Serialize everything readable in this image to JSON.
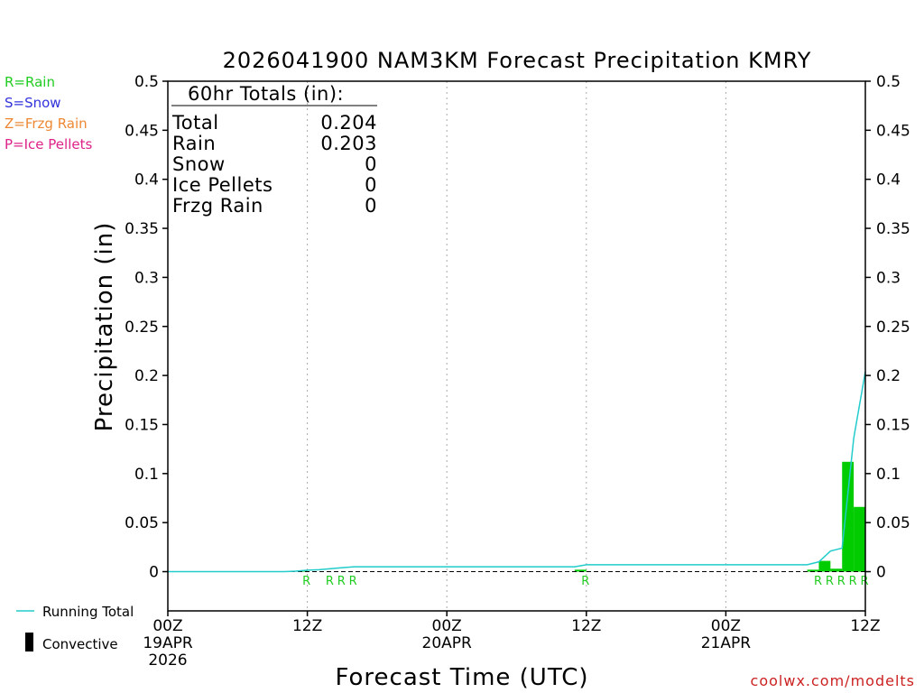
{
  "chart_data": {
    "type": "bar",
    "title": "2026041900 NAM3KM Forecast Precipitation KMRY",
    "ylabel": "Precipitation (in)",
    "xlabel": "Forecast Time (UTC)",
    "x_range_hours": [
      0,
      60
    ],
    "ylim": [
      -0.04,
      0.5
    ],
    "y_ticks": [
      "0",
      "0.05",
      "0.1",
      "0.15",
      "0.2",
      "0.25",
      "0.3",
      "0.35",
      "0.4",
      "0.45",
      "0.5"
    ],
    "y_tick_values": [
      0,
      0.05,
      0.1,
      0.15,
      0.2,
      0.25,
      0.3,
      0.35,
      0.4,
      0.45,
      0.5
    ],
    "x_ticks": [
      {
        "hour": 0,
        "line1": "00Z",
        "line2": "19APR",
        "line3": "2026"
      },
      {
        "hour": 12,
        "line1": "12Z",
        "line2": "",
        "line3": ""
      },
      {
        "hour": 24,
        "line1": "00Z",
        "line2": "20APR",
        "line3": ""
      },
      {
        "hour": 36,
        "line1": "12Z",
        "line2": "",
        "line3": ""
      },
      {
        "hour": 48,
        "line1": "00Z",
        "line2": "21APR",
        "line3": ""
      },
      {
        "hour": 60,
        "line1": "12Z",
        "line2": "",
        "line3": ""
      }
    ],
    "grid_vertical": true,
    "bars": [
      {
        "hour": 12,
        "value": 0.001
      },
      {
        "hour": 36,
        "value": 0.002
      },
      {
        "hour": 56,
        "value": 0.002
      },
      {
        "hour": 57,
        "value": 0.011
      },
      {
        "hour": 58,
        "value": 0.003
      },
      {
        "hour": 59,
        "value": 0.112
      },
      {
        "hour": 60,
        "value": 0.066
      }
    ],
    "running_total": {
      "name": "Running Total",
      "x": [
        0,
        10,
        11,
        12,
        13,
        14,
        15,
        16,
        24,
        35,
        36,
        37,
        48,
        55,
        56,
        57,
        58,
        59,
        60
      ],
      "y": [
        0,
        0,
        0.0005,
        0.0015,
        0.002,
        0.003,
        0.004,
        0.005,
        0.005,
        0.005,
        0.007,
        0.007,
        0.007,
        0.007,
        0.01,
        0.021,
        0.024,
        0.136,
        0.204
      ]
    },
    "precip_type_markers": [
      {
        "hour": 12,
        "label": "R"
      },
      {
        "hour": 14,
        "label": "R"
      },
      {
        "hour": 15,
        "label": "R"
      },
      {
        "hour": 16,
        "label": "R"
      },
      {
        "hour": 36,
        "label": "R"
      },
      {
        "hour": 56,
        "label": "R"
      },
      {
        "hour": 57,
        "label": "R"
      },
      {
        "hour": 58,
        "label": "R"
      },
      {
        "hour": 59,
        "label": "R"
      },
      {
        "hour": 60,
        "label": "R"
      }
    ],
    "totals_box": {
      "heading": "60hr Totals (in):",
      "rows": [
        {
          "label": "Total",
          "value": "0.204"
        },
        {
          "label": "Rain",
          "value": "0.203"
        },
        {
          "label": "Snow",
          "value": "0"
        },
        {
          "label": "Ice Pellets",
          "value": "0"
        },
        {
          "label": "Frzg Rain",
          "value": "0"
        }
      ]
    },
    "type_legend": [
      {
        "text": "R=Rain",
        "color": "#22cc22"
      },
      {
        "text": "S=Snow",
        "color": "#3333dd"
      },
      {
        "text": "Z=Frzg Rain",
        "color": "#ee8833"
      },
      {
        "text": "P=Ice Pellets",
        "color": "#dd2288"
      }
    ],
    "series_legend": [
      {
        "text": "Running Total",
        "color": "#22cccc"
      },
      {
        "text": "Convective",
        "color": "#000000"
      }
    ],
    "colors": {
      "bar": "#00cc00",
      "running_total": "#22cccc",
      "rain_marker": "#22cc22"
    },
    "credit": "coolwx.com/modelts"
  }
}
